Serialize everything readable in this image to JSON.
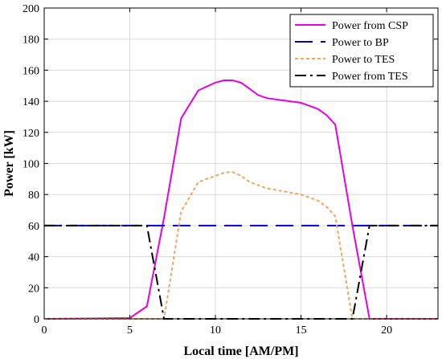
{
  "chart_data": {
    "type": "line",
    "xlabel": "Local time [AM/PM]",
    "ylabel": "Power [kW]",
    "xlim": [
      0,
      23
    ],
    "ylim": [
      0,
      200
    ],
    "xticks": [
      0,
      5,
      10,
      15,
      20
    ],
    "yticks": [
      0,
      20,
      40,
      60,
      80,
      100,
      120,
      140,
      160,
      180,
      200
    ],
    "grid": true,
    "legend_position": "top-right",
    "series": [
      {
        "name": "Power from CSP",
        "color": "#e600e6",
        "dash": "solid",
        "x": [
          0,
          5,
          6,
          7,
          8,
          9,
          10,
          10.5,
          11,
          11.5,
          12,
          12.5,
          13,
          14,
          15,
          16,
          16.5,
          17,
          18,
          19,
          23
        ],
        "y": [
          0,
          0.5,
          8,
          65,
          129,
          147,
          152,
          153.5,
          153.5,
          152,
          148,
          144,
          142,
          140.5,
          139,
          135,
          131,
          125,
          60,
          0,
          0
        ]
      },
      {
        "name": "Power to BP",
        "color": "#0000cc",
        "dash": "dashed",
        "x": [
          0,
          23
        ],
        "y": [
          60,
          60
        ]
      },
      {
        "name": "Power to TES",
        "color": "#f4a460",
        "dash": "dotted",
        "x": [
          0,
          6,
          7,
          8,
          9,
          10,
          10.5,
          11,
          11.5,
          12,
          13,
          14,
          15,
          16,
          16.5,
          17,
          18,
          23
        ],
        "y": [
          0,
          0,
          0,
          69,
          88,
          92,
          94,
          94.5,
          92,
          88,
          84,
          82,
          80,
          76,
          72,
          66,
          0,
          0
        ]
      },
      {
        "name": "Power from TES",
        "color": "#000000",
        "dash": "dashdot",
        "x": [
          0,
          6,
          7,
          18,
          19,
          23
        ],
        "y": [
          60,
          60,
          0,
          0,
          60,
          60
        ]
      }
    ]
  }
}
